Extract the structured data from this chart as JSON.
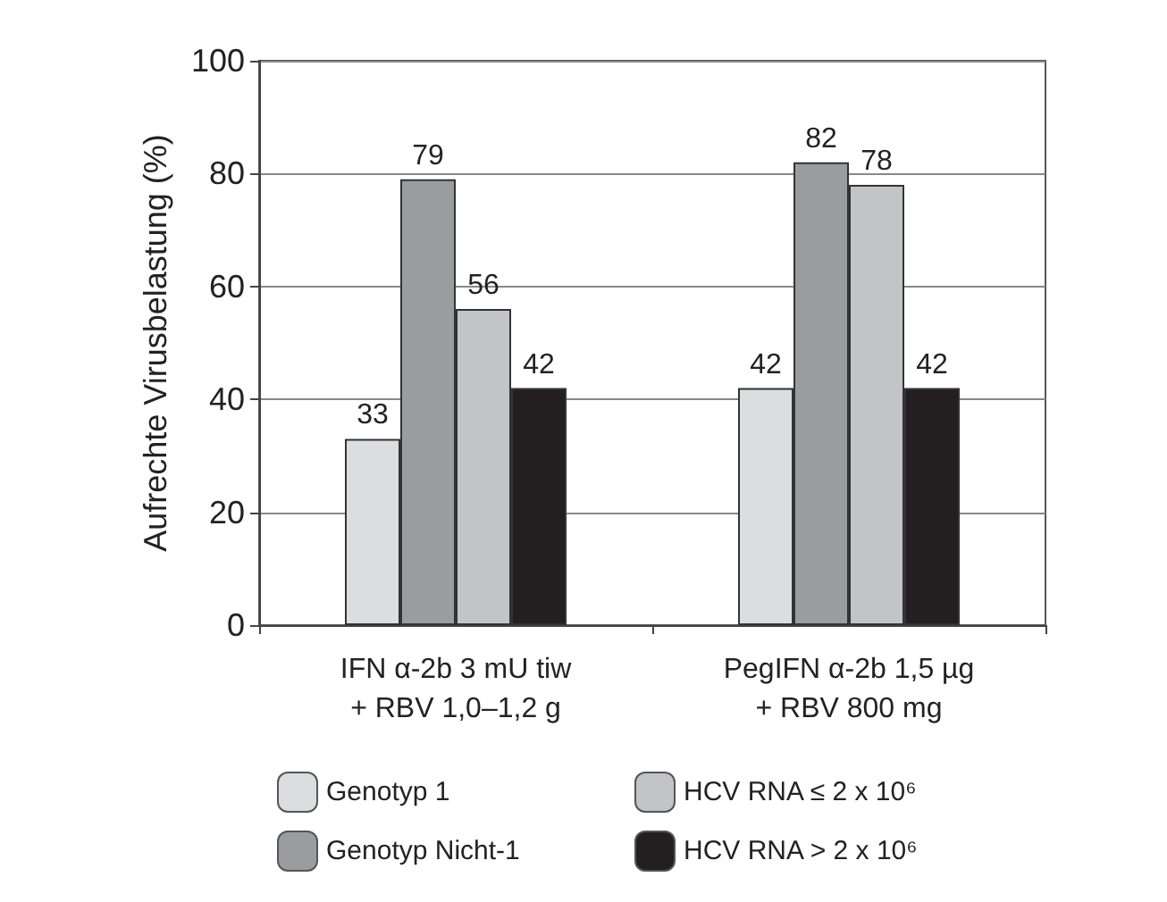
{
  "chart_data": {
    "type": "bar",
    "ylabel": "Aufrechte Virusbelastung (%)",
    "categories": [
      "IFN α-2b 3 mU tiw\n+ RBV 1,0–1,2 g",
      "PegIFN α-2b 1,5 µg\n+ RBV 800 mg"
    ],
    "series": [
      {
        "name": "Genotyp 1",
        "color": "#dcdddf",
        "values": [
          33,
          42
        ]
      },
      {
        "name": "Genotyp Nicht-1",
        "color": "#9a9c9f",
        "values": [
          79,
          82
        ]
      },
      {
        "name": "HCV RNA ≤ 2 x 10⁶",
        "color": "#c3c4c6",
        "values": [
          56,
          78
        ]
      },
      {
        "name": "HCV RNA > 2 x 10⁶",
        "color": "#231f20",
        "values": [
          42,
          42
        ]
      }
    ],
    "data_labels": true,
    "ylim": [
      0,
      100
    ],
    "yticks": [
      0,
      20,
      40,
      60,
      80,
      100
    ],
    "grid": "y",
    "legend": "bottom"
  }
}
